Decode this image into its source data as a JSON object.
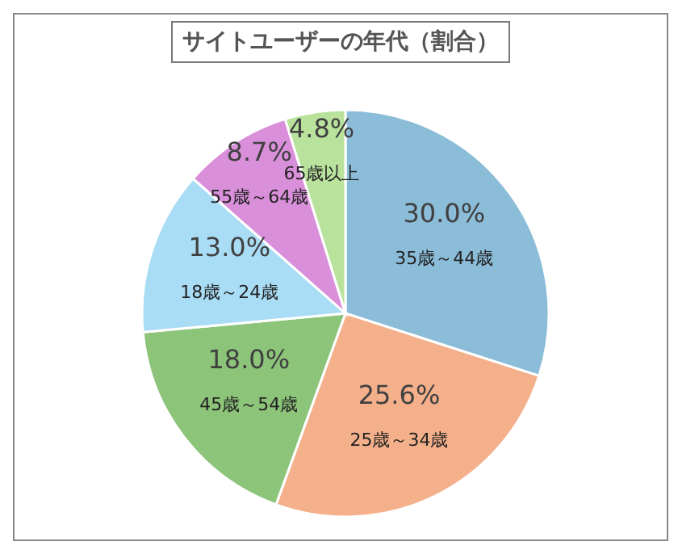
{
  "chart_data": {
    "type": "pie",
    "title": "サイトユーザーの年代（割合）",
    "categories": [
      "35歳～44歳",
      "25歳～34歳",
      "45歳～54歳",
      "18歳～24歳",
      "55歳～64歳",
      "65歳以上"
    ],
    "values": [
      30.0,
      25.6,
      18.0,
      13.0,
      8.7,
      4.8
    ],
    "value_labels": [
      "30.0%",
      "25.6%",
      "18.0%",
      "13.0%",
      "8.7%",
      "4.8%"
    ],
    "colors": [
      "#8bbcd8",
      "#f4b08a",
      "#8cc47a",
      "#a9dcf5",
      "#d98fd9",
      "#b9e29c"
    ],
    "legend": false
  }
}
